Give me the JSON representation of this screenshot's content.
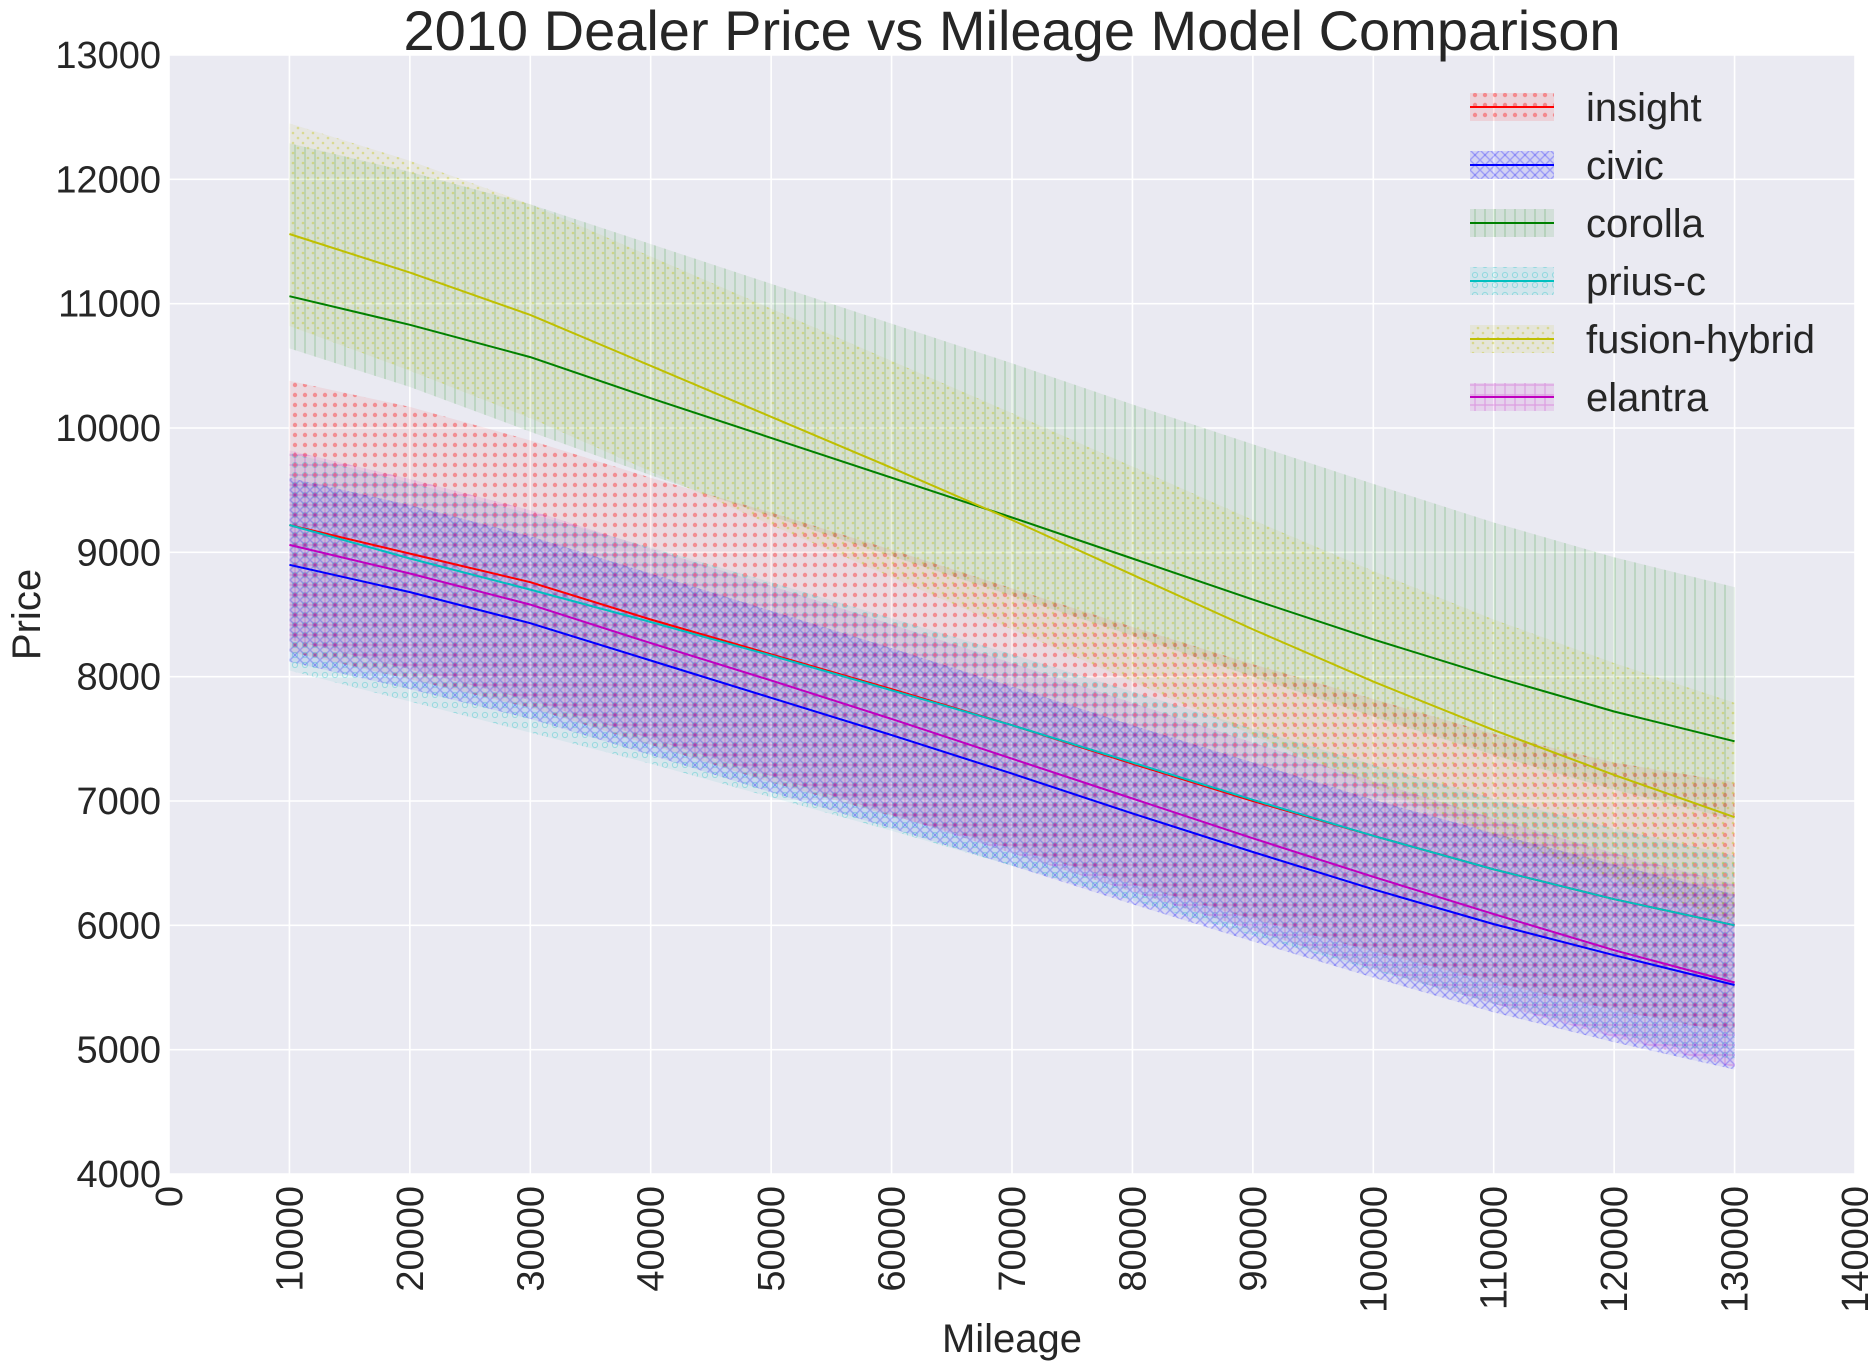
{
  "chart_data": {
    "type": "line",
    "title": "2010 Dealer Price vs Mileage Model Comparison",
    "xlabel": "Mileage",
    "ylabel": "Price",
    "xlim": [
      0,
      140000
    ],
    "ylim": [
      4000,
      13000
    ],
    "xticks": [
      0,
      10000,
      20000,
      30000,
      40000,
      50000,
      60000,
      70000,
      80000,
      90000,
      100000,
      110000,
      120000,
      130000,
      140000
    ],
    "yticks": [
      4000,
      5000,
      6000,
      7000,
      8000,
      9000,
      10000,
      11000,
      12000,
      13000
    ],
    "grid": true,
    "legend_position": "top-right",
    "background": "#EAEAF2",
    "x": [
      10000,
      20000,
      30000,
      40000,
      50000,
      60000,
      70000,
      80000,
      90000,
      100000,
      110000,
      120000,
      130000
    ],
    "series": [
      {
        "name": "insight",
        "color": "#FF0000",
        "values": [
          9220,
          8990,
          8760,
          8460,
          8180,
          7900,
          7610,
          7300,
          7000,
          6720,
          6450,
          6210,
          6000
        ],
        "band_low": [
          8200,
          7980,
          7750,
          7450,
          7150,
          6880,
          6620,
          6330,
          6050,
          5790,
          5540,
          5320,
          5130
        ],
        "band_high": [
          10380,
          10170,
          9900,
          9600,
          9320,
          9020,
          8710,
          8400,
          8100,
          7820,
          7540,
          7310,
          7150
        ]
      },
      {
        "name": "civic",
        "color": "#0000FF",
        "values": [
          8900,
          8680,
          8430,
          8130,
          7830,
          7530,
          7220,
          6900,
          6590,
          6290,
          6010,
          5760,
          5520
        ],
        "band_low": [
          8120,
          7900,
          7660,
          7370,
          7070,
          6780,
          6480,
          6170,
          5870,
          5580,
          5300,
          5060,
          4840
        ],
        "band_high": [
          9600,
          9380,
          9130,
          8830,
          8530,
          8230,
          7920,
          7610,
          7310,
          7010,
          6740,
          6490,
          6250
        ]
      },
      {
        "name": "corolla",
        "color": "#008000",
        "values": [
          11060,
          10830,
          10570,
          10240,
          9920,
          9600,
          9280,
          8950,
          8620,
          8300,
          8000,
          7720,
          7480
        ],
        "band_low": [
          10640,
          10330,
          9970,
          9620,
          9290,
          8970,
          8650,
          8330,
          8000,
          7680,
          7370,
          7090,
          6850
        ],
        "band_high": [
          12290,
          12060,
          11800,
          11480,
          11160,
          10840,
          10520,
          10190,
          9870,
          9550,
          9240,
          8960,
          8720
        ]
      },
      {
        "name": "prius-c",
        "color": "#00BFBF",
        "values": [
          9220,
          8950,
          8700,
          8440,
          8170,
          7890,
          7610,
          7310,
          7010,
          6720,
          6450,
          6210,
          6000
        ],
        "band_low": [
          8050,
          7800,
          7550,
          7300,
          7030,
          6760,
          6480,
          6200,
          5920,
          5640,
          5370,
          5130,
          4920
        ],
        "band_high": [
          9800,
          9560,
          9310,
          9040,
          8760,
          8470,
          8180,
          7880,
          7580,
          7290,
          7020,
          6780,
          6560
        ]
      },
      {
        "name": "fusion-hybrid",
        "color": "#BFBF00",
        "values": [
          11560,
          11250,
          10910,
          10500,
          10090,
          9680,
          9260,
          8820,
          8380,
          7960,
          7570,
          7210,
          6870
        ],
        "band_low": [
          10820,
          10460,
          10080,
          9650,
          9220,
          8800,
          8380,
          7960,
          7530,
          7110,
          6720,
          6370,
          6030
        ],
        "band_high": [
          12450,
          12150,
          11800,
          11380,
          10960,
          10540,
          10120,
          9690,
          9260,
          8850,
          8460,
          8110,
          7790
        ]
      },
      {
        "name": "elantra",
        "color": "#BF00BF",
        "values": [
          9060,
          8830,
          8580,
          8270,
          7970,
          7660,
          7340,
          7020,
          6700,
          6390,
          6090,
          5800,
          5540
        ],
        "band_low": [
          8300,
          8060,
          7810,
          7500,
          7200,
          6890,
          6580,
          6270,
          5960,
          5650,
          5370,
          5100,
          4860
        ],
        "band_high": [
          9820,
          9590,
          9340,
          9030,
          8730,
          8420,
          8110,
          7790,
          7470,
          7160,
          6860,
          6580,
          6330
        ]
      }
    ]
  }
}
